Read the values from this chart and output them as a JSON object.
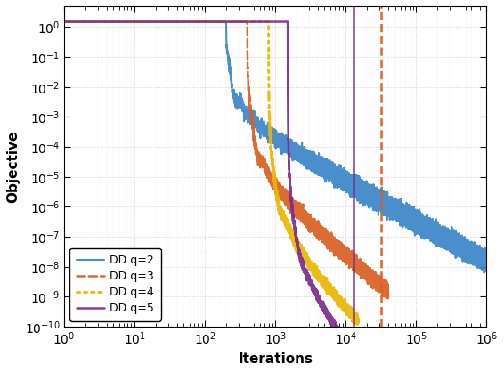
{
  "title": "",
  "xlabel": "Iterations",
  "ylabel": "Objective",
  "xlim": [
    1,
    1000000.0
  ],
  "ylim": [
    1e-10,
    5
  ],
  "series": [
    {
      "label": "DD q=2",
      "color": "#3a86c8",
      "linestyle": "solid",
      "linewidth": 1.5,
      "q": 2,
      "n_iters": 1000000,
      "plateau_end": 200,
      "drop_start": 200,
      "drop_end": 800,
      "osc_freq": 6.0,
      "osc_amp": 0.5,
      "power": 1.6,
      "noise_std": 0.12
    },
    {
      "label": "DD q=3",
      "color": "#d95f20",
      "linestyle": "dashed",
      "linewidth": 1.8,
      "q": 3,
      "n_iters": 40000,
      "plateau_end": 400,
      "drop_start": 400,
      "drop_end": 1800,
      "osc_freq": 5.0,
      "osc_amp": 0.4,
      "power": 1.8,
      "noise_std": 0.1
    },
    {
      "label": "DD q=4",
      "color": "#e8b800",
      "linestyle": "dotted",
      "linewidth": 2.2,
      "q": 4,
      "n_iters": 15000,
      "plateau_end": 800,
      "drop_start": 800,
      "drop_end": 3500,
      "osc_freq": 4.5,
      "osc_amp": 0.35,
      "power": 2.0,
      "noise_std": 0.08
    },
    {
      "label": "DD q=5",
      "color": "#7b2d8b",
      "linestyle": "solid",
      "linewidth": 1.8,
      "q": 5,
      "n_iters": 13000,
      "plateau_end": 1500,
      "drop_start": 1500,
      "drop_end": 6000,
      "osc_freq": 3.5,
      "osc_amp": 0.3,
      "power": 2.2,
      "noise_std": 0.06
    }
  ],
  "vline_q5_x": 13000,
  "vline_q5_color": "#7b2d8b",
  "vline_q5_ls": "solid",
  "vline_q3_x": 32000,
  "vline_q3_color": "#d95f20",
  "vline_q3_ls": "dashed",
  "legend_loc": "lower left",
  "legend_fontsize": 9,
  "background_color": "#ffffff",
  "grid_color": "#aaaaaa",
  "grid_lw": 0.5,
  "ylabel_fontsize": 11,
  "xlabel_fontsize": 11,
  "f0": 1.5
}
